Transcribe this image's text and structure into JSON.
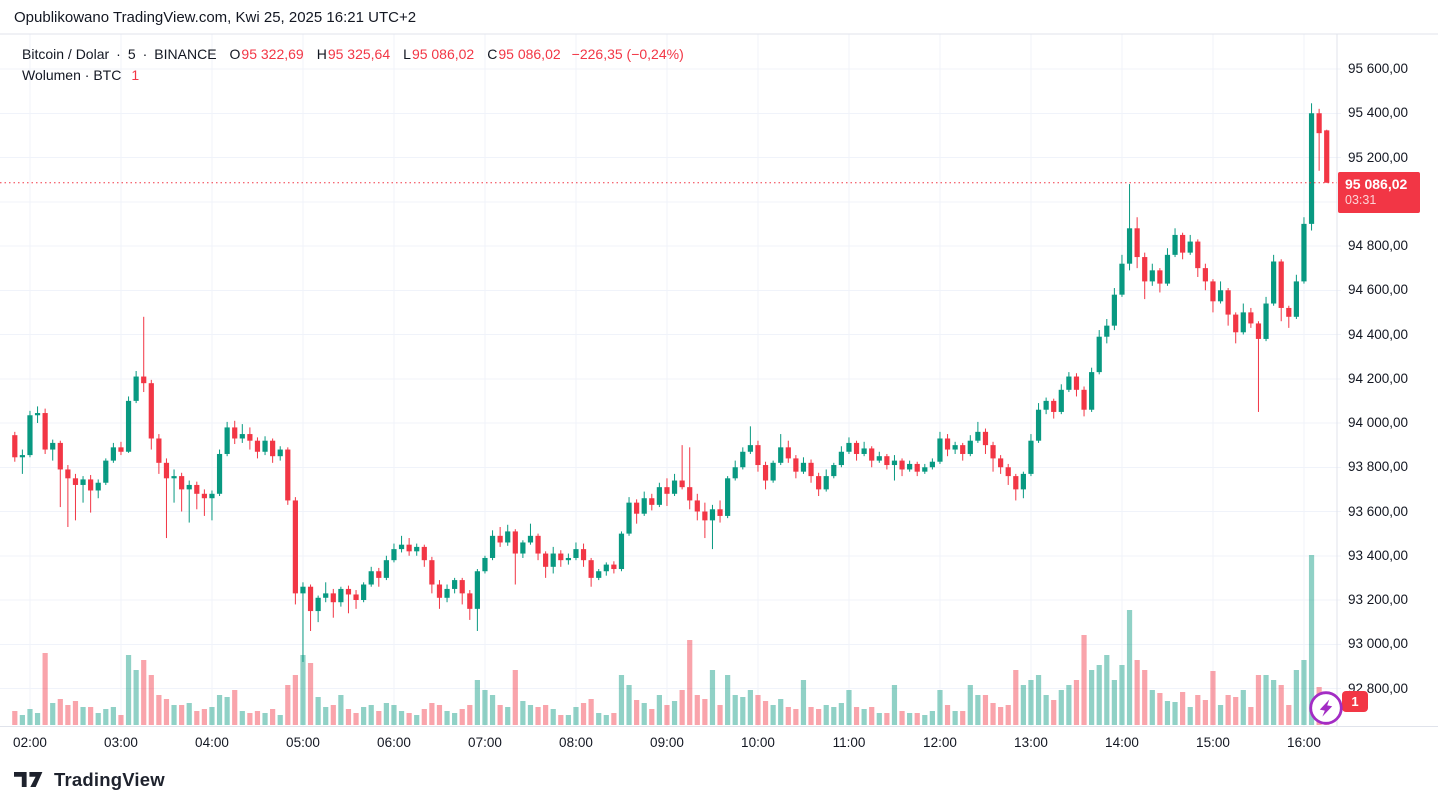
{
  "header": {
    "published": "Opublikowano TradingView.com, Kwi 25, 2025 16:21 UTC+2"
  },
  "legend": {
    "symbol": "Bitcoin / Dolar",
    "sep": "·",
    "interval": "5",
    "exchange": "BINANCE",
    "o_label": "O",
    "o": "95 322,69",
    "h_label": "H",
    "h": "95 325,64",
    "l_label": "L",
    "l": "95 086,02",
    "c_label": "C",
    "c": "95 086,02",
    "change": "−226,35 (−0,24%)",
    "volume_label": "Wolumen · BTC",
    "volume_value": "1"
  },
  "price_label": {
    "price": "95 086,02",
    "countdown": "03:31"
  },
  "volume_badge": "1",
  "footer": {
    "brand": "TradingView"
  },
  "icons": {
    "flash": "lightning-bolt",
    "logo": "tradingview-logo"
  },
  "colors": {
    "up": "#089981",
    "down": "#F23645",
    "vol_up": "rgba(8,153,129,0.45)",
    "vol_down": "rgba(242,54,69,0.45)",
    "grid": "#F0F3FA",
    "border": "#E0E3EB",
    "text": "#131722",
    "price_line": "#F23645",
    "badge_bg": "#F23645",
    "flash_purple": "#A32CC4"
  },
  "chart_data": {
    "type": "candlestick+volume",
    "title": "Bitcoin / Dolar · 5 · BINANCE",
    "interval_minutes": 5,
    "start_time": "01:50",
    "x_axis": {
      "hour_labels": [
        "02:00",
        "03:00",
        "04:00",
        "05:00",
        "06:00",
        "07:00",
        "08:00",
        "09:00",
        "10:00",
        "11:00",
        "12:00",
        "13:00",
        "14:00",
        "15:00",
        "16:00"
      ]
    },
    "y_axis": {
      "min": 92800,
      "max": 95600,
      "step": 200
    },
    "price_line_value": 95086.02,
    "legend_note": "volume values are relative heights read from pixels",
    "candles": [
      [
        93945,
        93960,
        93825,
        93845,
        14
      ],
      [
        93845,
        93880,
        93770,
        93855,
        10
      ],
      [
        93855,
        94055,
        93845,
        94035,
        16
      ],
      [
        94035,
        94075,
        94000,
        94045,
        12
      ],
      [
        94045,
        94065,
        93860,
        93880,
        72
      ],
      [
        93880,
        93925,
        93830,
        93910,
        22
      ],
      [
        93910,
        93920,
        93620,
        93790,
        26
      ],
      [
        93790,
        93810,
        93530,
        93750,
        20
      ],
      [
        93750,
        93770,
        93560,
        93720,
        24
      ],
      [
        93720,
        93760,
        93640,
        93745,
        18
      ],
      [
        93745,
        93765,
        93595,
        93695,
        18
      ],
      [
        93695,
        93745,
        93660,
        93730,
        12
      ],
      [
        93730,
        93840,
        93720,
        93830,
        16
      ],
      [
        93830,
        93910,
        93820,
        93890,
        18
      ],
      [
        93890,
        93915,
        93855,
        93870,
        10
      ],
      [
        93870,
        94120,
        93865,
        94100,
        70
      ],
      [
        94100,
        94235,
        94090,
        94210,
        55
      ],
      [
        94210,
        94480,
        94140,
        94180,
        65
      ],
      [
        94180,
        94195,
        93880,
        93930,
        50
      ],
      [
        93930,
        93950,
        93770,
        93820,
        30
      ],
      [
        93820,
        93840,
        93480,
        93750,
        26
      ],
      [
        93750,
        93790,
        93640,
        93760,
        20
      ],
      [
        93760,
        93775,
        93600,
        93700,
        20
      ],
      [
        93700,
        93740,
        93550,
        93720,
        22
      ],
      [
        93720,
        93735,
        93610,
        93680,
        14
      ],
      [
        93680,
        93700,
        93580,
        93660,
        16
      ],
      [
        93660,
        93695,
        93560,
        93680,
        18
      ],
      [
        93680,
        93880,
        93670,
        93860,
        30
      ],
      [
        93860,
        94005,
        93850,
        93980,
        28
      ],
      [
        93980,
        94010,
        93905,
        93930,
        35
      ],
      [
        93930,
        93995,
        93910,
        93950,
        14
      ],
      [
        93950,
        93980,
        93880,
        93920,
        12
      ],
      [
        93920,
        93935,
        93840,
        93870,
        14
      ],
      [
        93870,
        93940,
        93855,
        93920,
        12
      ],
      [
        93920,
        93930,
        93820,
        93850,
        16
      ],
      [
        93850,
        93895,
        93830,
        93880,
        10
      ],
      [
        93880,
        93890,
        93630,
        93650,
        40
      ],
      [
        93650,
        93665,
        93180,
        93230,
        50
      ],
      [
        93230,
        93280,
        92920,
        93260,
        70
      ],
      [
        93260,
        93270,
        93060,
        93150,
        62
      ],
      [
        93150,
        93220,
        93100,
        93210,
        28
      ],
      [
        93210,
        93280,
        93190,
        93230,
        18
      ],
      [
        93230,
        93250,
        93120,
        93190,
        20
      ],
      [
        93190,
        93260,
        93170,
        93250,
        30
      ],
      [
        93250,
        93265,
        93140,
        93225,
        16
      ],
      [
        93225,
        93245,
        93160,
        93200,
        12
      ],
      [
        93200,
        93280,
        93190,
        93270,
        18
      ],
      [
        93270,
        93350,
        93260,
        93330,
        20
      ],
      [
        93330,
        93345,
        93260,
        93300,
        14
      ],
      [
        93300,
        93400,
        93290,
        93380,
        22
      ],
      [
        93380,
        93455,
        93370,
        93430,
        20
      ],
      [
        93430,
        93490,
        93415,
        93450,
        14
      ],
      [
        93450,
        93480,
        93400,
        93420,
        12
      ],
      [
        93420,
        93455,
        93400,
        93440,
        10
      ],
      [
        93440,
        93450,
        93350,
        93380,
        16
      ],
      [
        93380,
        93395,
        93230,
        93270,
        22
      ],
      [
        93270,
        93290,
        93160,
        93210,
        20
      ],
      [
        93210,
        93270,
        93190,
        93250,
        14
      ],
      [
        93250,
        93300,
        93230,
        93290,
        12
      ],
      [
        93290,
        93300,
        93180,
        93230,
        16
      ],
      [
        93230,
        93245,
        93110,
        93160,
        20
      ],
      [
        93160,
        93340,
        93060,
        93330,
        45
      ],
      [
        93330,
        93400,
        93320,
        93390,
        35
      ],
      [
        93390,
        93515,
        93380,
        93490,
        30
      ],
      [
        93490,
        93530,
        93440,
        93460,
        20
      ],
      [
        93460,
        93540,
        93445,
        93510,
        18
      ],
      [
        93510,
        93520,
        93270,
        93410,
        55
      ],
      [
        93410,
        93470,
        93390,
        93460,
        24
      ],
      [
        93460,
        93545,
        93450,
        93490,
        20
      ],
      [
        93490,
        93500,
        93380,
        93410,
        18
      ],
      [
        93410,
        93420,
        93300,
        93350,
        20
      ],
      [
        93350,
        93440,
        93320,
        93410,
        16
      ],
      [
        93410,
        93425,
        93350,
        93380,
        10
      ],
      [
        93380,
        93410,
        93360,
        93390,
        10
      ],
      [
        93390,
        93460,
        93380,
        93430,
        18
      ],
      [
        93430,
        93455,
        93350,
        93380,
        22
      ],
      [
        93380,
        93390,
        93260,
        93300,
        26
      ],
      [
        93300,
        93340,
        93290,
        93330,
        12
      ],
      [
        93330,
        93370,
        93310,
        93360,
        10
      ],
      [
        93360,
        93375,
        93320,
        93340,
        12
      ],
      [
        93340,
        93510,
        93330,
        93500,
        50
      ],
      [
        93500,
        93665,
        93490,
        93640,
        40
      ],
      [
        93640,
        93655,
        93545,
        93590,
        25
      ],
      [
        93590,
        93690,
        93580,
        93660,
        22
      ],
      [
        93660,
        93680,
        93605,
        93630,
        16
      ],
      [
        93630,
        93730,
        93620,
        93710,
        30
      ],
      [
        93710,
        93750,
        93625,
        93680,
        20
      ],
      [
        93680,
        93770,
        93670,
        93740,
        24
      ],
      [
        93740,
        93900,
        93700,
        93710,
        35
      ],
      [
        93710,
        93890,
        93610,
        93650,
        85
      ],
      [
        93650,
        93680,
        93560,
        93600,
        30
      ],
      [
        93600,
        93640,
        93480,
        93560,
        26
      ],
      [
        93560,
        93630,
        93430,
        93610,
        55
      ],
      [
        93610,
        93650,
        93550,
        93580,
        20
      ],
      [
        93580,
        93760,
        93570,
        93750,
        50
      ],
      [
        93750,
        93830,
        93740,
        93800,
        30
      ],
      [
        93800,
        93890,
        93790,
        93870,
        28
      ],
      [
        93870,
        93985,
        93860,
        93900,
        35
      ],
      [
        93900,
        93920,
        93780,
        93810,
        30
      ],
      [
        93810,
        93825,
        93700,
        93740,
        24
      ],
      [
        93740,
        93830,
        93730,
        93820,
        20
      ],
      [
        93820,
        93950,
        93810,
        93890,
        26
      ],
      [
        93890,
        93920,
        93820,
        93840,
        18
      ],
      [
        93840,
        93855,
        93750,
        93780,
        16
      ],
      [
        93780,
        93845,
        93770,
        93820,
        45
      ],
      [
        93820,
        93835,
        93730,
        93760,
        18
      ],
      [
        93760,
        93775,
        93670,
        93700,
        16
      ],
      [
        93700,
        93790,
        93690,
        93760,
        20
      ],
      [
        93760,
        93820,
        93750,
        93810,
        18
      ],
      [
        93810,
        93895,
        93800,
        93870,
        22
      ],
      [
        93870,
        93935,
        93860,
        93910,
        35
      ],
      [
        93910,
        93920,
        93830,
        93860,
        18
      ],
      [
        93860,
        93915,
        93850,
        93885,
        16
      ],
      [
        93885,
        93895,
        93800,
        93830,
        18
      ],
      [
        93830,
        93870,
        93820,
        93850,
        12
      ],
      [
        93850,
        93860,
        93790,
        93810,
        12
      ],
      [
        93810,
        93855,
        93740,
        93830,
        40
      ],
      [
        93830,
        93840,
        93760,
        93790,
        14
      ],
      [
        93790,
        93830,
        93780,
        93815,
        12
      ],
      [
        93815,
        93825,
        93760,
        93780,
        12
      ],
      [
        93780,
        93815,
        93770,
        93800,
        10
      ],
      [
        93800,
        93840,
        93790,
        93825,
        14
      ],
      [
        93825,
        93960,
        93815,
        93930,
        35
      ],
      [
        93930,
        93950,
        93850,
        93880,
        20
      ],
      [
        93880,
        93915,
        93860,
        93900,
        14
      ],
      [
        93900,
        93910,
        93830,
        93860,
        14
      ],
      [
        93860,
        93945,
        93850,
        93920,
        40
      ],
      [
        93920,
        94005,
        93910,
        93960,
        30
      ],
      [
        93960,
        93975,
        93860,
        93900,
        30
      ],
      [
        93900,
        93915,
        93780,
        93840,
        22
      ],
      [
        93840,
        93855,
        93770,
        93800,
        18
      ],
      [
        93800,
        93815,
        93720,
        93760,
        20
      ],
      [
        93760,
        93770,
        93650,
        93700,
        55
      ],
      [
        93700,
        93780,
        93660,
        93770,
        40
      ],
      [
        93770,
        93950,
        93760,
        93920,
        45
      ],
      [
        93920,
        94090,
        93910,
        94060,
        50
      ],
      [
        94060,
        94115,
        94040,
        94100,
        30
      ],
      [
        94100,
        94110,
        94020,
        94050,
        25
      ],
      [
        94050,
        94175,
        94040,
        94150,
        35
      ],
      [
        94150,
        94230,
        94140,
        94210,
        40
      ],
      [
        94210,
        94225,
        94120,
        94150,
        45
      ],
      [
        94150,
        94165,
        94030,
        94060,
        90
      ],
      [
        94060,
        94250,
        94050,
        94230,
        55
      ],
      [
        94230,
        94420,
        94220,
        94390,
        60
      ],
      [
        94390,
        94470,
        94360,
        94440,
        70
      ],
      [
        94440,
        94610,
        94420,
        94580,
        45
      ],
      [
        94580,
        94760,
        94570,
        94720,
        60
      ],
      [
        94720,
        95080,
        94690,
        94880,
        115
      ],
      [
        94880,
        94930,
        94700,
        94750,
        65
      ],
      [
        94750,
        94770,
        94560,
        94640,
        55
      ],
      [
        94640,
        94720,
        94620,
        94690,
        35
      ],
      [
        94690,
        94700,
        94590,
        94630,
        32
      ],
      [
        94630,
        94790,
        94620,
        94760,
        24
      ],
      [
        94760,
        94880,
        94750,
        94850,
        23
      ],
      [
        94850,
        94860,
        94740,
        94770,
        33
      ],
      [
        94770,
        94850,
        94760,
        94820,
        18
      ],
      [
        94820,
        94830,
        94660,
        94700,
        30
      ],
      [
        94700,
        94720,
        94600,
        94640,
        25
      ],
      [
        94640,
        94650,
        94500,
        94550,
        54
      ],
      [
        94550,
        94640,
        94540,
        94600,
        20
      ],
      [
        94600,
        94610,
        94440,
        94490,
        30
      ],
      [
        94490,
        94500,
        94360,
        94410,
        28
      ],
      [
        94410,
        94540,
        94400,
        94500,
        35
      ],
      [
        94500,
        94520,
        94430,
        94450,
        18
      ],
      [
        94450,
        94460,
        94050,
        94380,
        50
      ],
      [
        94380,
        94570,
        94370,
        94540,
        50
      ],
      [
        94540,
        94760,
        94530,
        94730,
        45
      ],
      [
        94730,
        94740,
        94460,
        94520,
        40
      ],
      [
        94520,
        94530,
        94430,
        94480,
        20
      ],
      [
        94480,
        94670,
        94470,
        94640,
        55
      ],
      [
        94640,
        94930,
        94630,
        94900,
        65
      ],
      [
        94900,
        95445,
        94870,
        95400,
        170
      ],
      [
        95400,
        95420,
        95140,
        95310,
        38
      ],
      [
        95322.69,
        95325.64,
        95086.02,
        95086.02,
        12
      ]
    ]
  }
}
